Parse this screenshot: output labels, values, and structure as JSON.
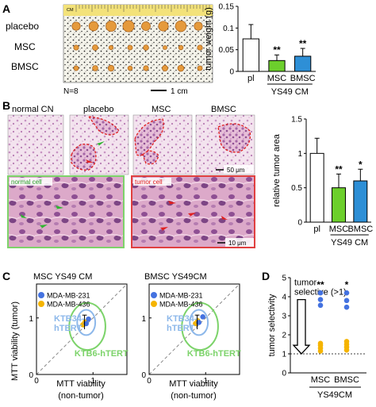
{
  "panel_letters": [
    "A",
    "B",
    "C",
    "D"
  ],
  "panel_a": {
    "rows": [
      "placebo",
      "MSC",
      "BMSC"
    ],
    "n_label": "N=8",
    "scale_label": "1 cm",
    "ruler_label": "CM"
  },
  "panel_b": {
    "images": [
      "normal CN",
      "placebo",
      "MSC",
      "BMSC"
    ],
    "scale_top": "50 μm",
    "scale_bottom": "10 μm",
    "inset_normal": "normal cell",
    "inset_tumor": "tumor cell"
  },
  "panel_c": {
    "plots": [
      {
        "title": "MSC YS49 CM"
      },
      {
        "title": "BMSC YS49CM"
      }
    ],
    "ylabel": "MTT viability (tumor)",
    "xlabel_line1": "MTT viability",
    "xlabel_line2": "(non-tumor)",
    "legend": [
      "MDA-MB-231",
      "MDA-MB-436"
    ],
    "ktb34": "KTB34-\nhTERT",
    "ktb6": "KTB6-hTERT",
    "tick_0": "0",
    "tick_1": "1",
    "colors": {
      "mda231": "#4472e0",
      "mda436": "#f5b400",
      "ktb34": "#8db8ea",
      "ktb6": "#7cd36a"
    }
  },
  "chart_data": [
    {
      "type": "bar",
      "categories": [
        "pl",
        "MSC",
        "BMSC"
      ],
      "values": [
        0.075,
        0.025,
        0.035
      ],
      "errors": [
        0.033,
        0.013,
        0.018
      ],
      "significance": [
        "",
        "**",
        "**"
      ],
      "bar_colors": [
        "#ffffff",
        "#6ccf2c",
        "#2e8fd6"
      ],
      "xgroup_label": "YS49 CM",
      "ylabel": "tumor weight (g)",
      "ylim": [
        0,
        0.15
      ],
      "yticks": [
        "0",
        "0.05",
        "0.1",
        "0.15"
      ]
    },
    {
      "type": "bar",
      "categories": [
        "pl",
        "MSC",
        "BMSC"
      ],
      "values": [
        1.0,
        0.5,
        0.6
      ],
      "errors": [
        0.22,
        0.2,
        0.17
      ],
      "significance": [
        "",
        "**",
        "*"
      ],
      "bar_colors": [
        "#ffffff",
        "#6ccf2c",
        "#2e8fd6"
      ],
      "xgroup_label": "YS49 CM",
      "ylabel": "relative tumor area",
      "ylim": [
        0,
        1.5
      ],
      "yticks": [
        "0",
        "0.5",
        "1",
        "1.5"
      ]
    },
    {
      "type": "scatter",
      "categories": [
        "MSC",
        "BMSC"
      ],
      "series": [
        {
          "name": "MDA-MB-231",
          "values": [
            [
              4.2,
              3.85,
              3.55
            ],
            [
              4.2,
              3.8,
              3.45
            ]
          ]
        },
        {
          "name": "MDA-MB-436",
          "values": [
            [
              1.15,
              1.3,
              1.45,
              1.55
            ],
            [
              1.2,
              1.35,
              1.5,
              1.65
            ]
          ]
        }
      ],
      "significance": [
        "**",
        "*"
      ],
      "threshold": 1,
      "annotation": "tumor\nselective (>1)",
      "xgroup_label": "YS49CM",
      "ylabel": "tumor selectivity",
      "ylim": [
        0,
        5
      ],
      "yticks": [
        "0",
        "1",
        "2",
        "3",
        "4",
        "5"
      ]
    }
  ]
}
